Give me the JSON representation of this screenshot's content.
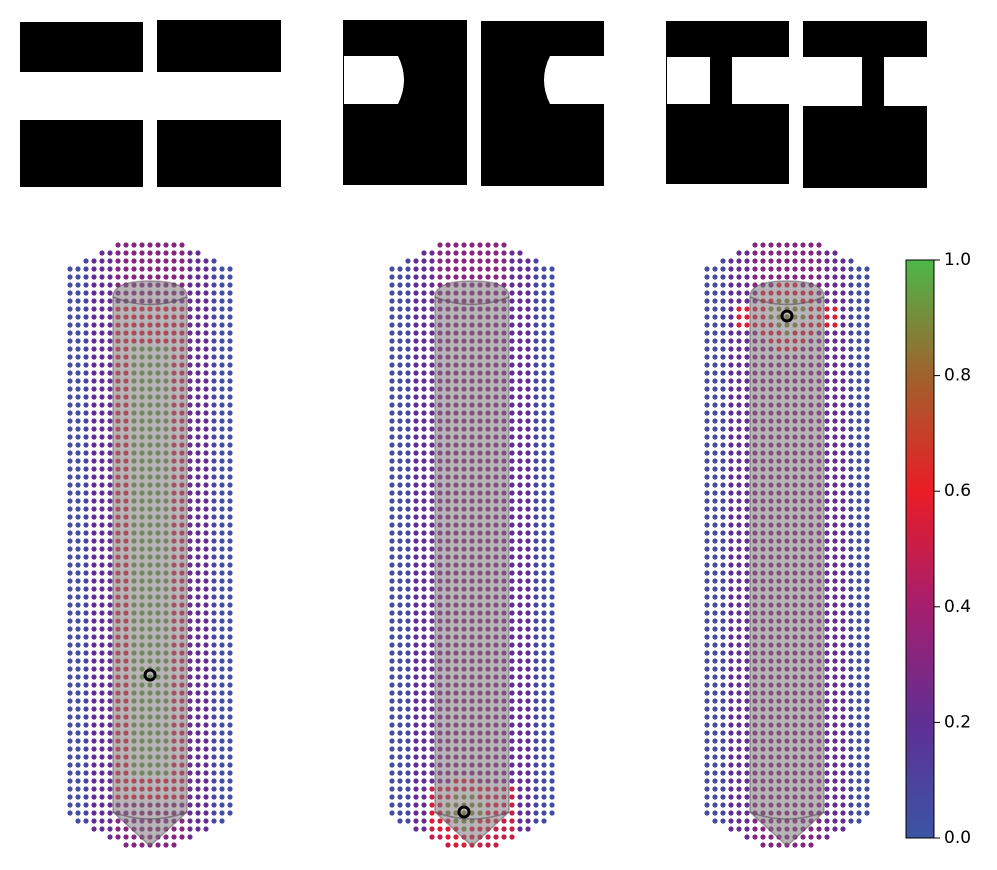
{
  "chart_data": {
    "type": "colorbar",
    "colormap": [
      "#3b55a5",
      "#5f2f94",
      "#a61e6e",
      "#ea1d25",
      "#a0622c",
      "#4db848"
    ],
    "ylim": [
      0,
      1
    ],
    "yticks": [
      {
        "value": 0,
        "label": "0.0"
      },
      {
        "value": 0.2,
        "label": "0.2"
      },
      {
        "value": 0.4,
        "label": "0.4"
      },
      {
        "value": 0.6,
        "label": "0.6"
      },
      {
        "value": 0.8,
        "label": "0.8"
      },
      {
        "value": 1,
        "label": "1.0"
      }
    ]
  }
}
